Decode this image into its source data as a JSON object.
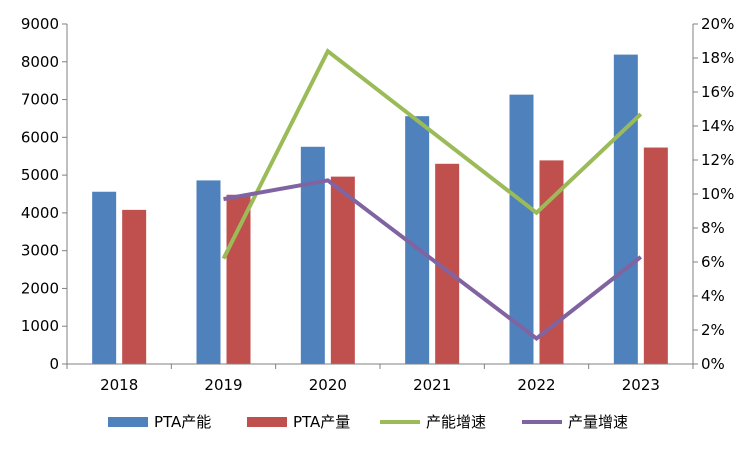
{
  "chart_data": {
    "type": "bar",
    "categories": [
      "2018",
      "2019",
      "2020",
      "2021",
      "2022",
      "2023"
    ],
    "series": [
      {
        "name": "PTA产能",
        "type": "bar",
        "axis": "left",
        "color": "#4F81BD",
        "values": [
          4560,
          4860,
          5750,
          6560,
          7130,
          8190
        ]
      },
      {
        "name": "PTA产量",
        "type": "bar",
        "axis": "left",
        "color": "#C0504D",
        "values": [
          4080,
          4480,
          4960,
          5300,
          5390,
          5730
        ]
      },
      {
        "name": "产能增速",
        "type": "line",
        "axis": "right",
        "color": "#9BBB59",
        "values": [
          null,
          0.062,
          0.184,
          null,
          0.089,
          0.147
        ]
      },
      {
        "name": "产量增速",
        "type": "line",
        "axis": "right",
        "color": "#8064A2",
        "values": [
          null,
          0.097,
          0.108,
          null,
          0.015,
          0.063
        ]
      }
    ],
    "ylim_left": [
      0,
      9000
    ],
    "yticks_left": [
      "0",
      "1000",
      "2000",
      "3000",
      "4000",
      "5000",
      "6000",
      "7000",
      "8000",
      "9000"
    ],
    "ylim_right": [
      0,
      0.2
    ],
    "yticks_right": [
      "0%",
      "2%",
      "4%",
      "6%",
      "8%",
      "10%",
      "12%",
      "14%",
      "16%",
      "18%",
      "20%"
    ],
    "legend_position": "bottom",
    "grid": false,
    "title": "",
    "xlabel": "",
    "ylabel": ""
  }
}
